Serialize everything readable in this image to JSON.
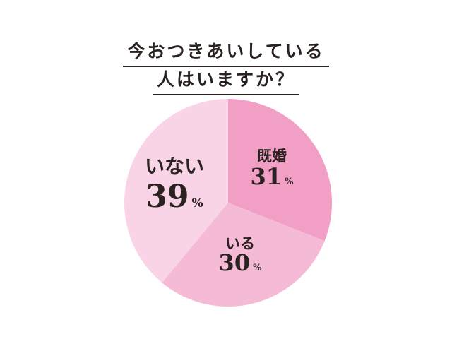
{
  "chart_data": {
    "type": "pie",
    "title": [
      "今おつきあいしている",
      "人はいますか？"
    ],
    "categories": [
      "既婚",
      "いる",
      "いない"
    ],
    "values": [
      31,
      30,
      39
    ],
    "unit": "%",
    "colors": [
      "#f29fc5",
      "#f5bad6",
      "#f9d4e6"
    ],
    "start": "top",
    "direction": "clockwise",
    "legend": "none",
    "grid": false
  }
}
